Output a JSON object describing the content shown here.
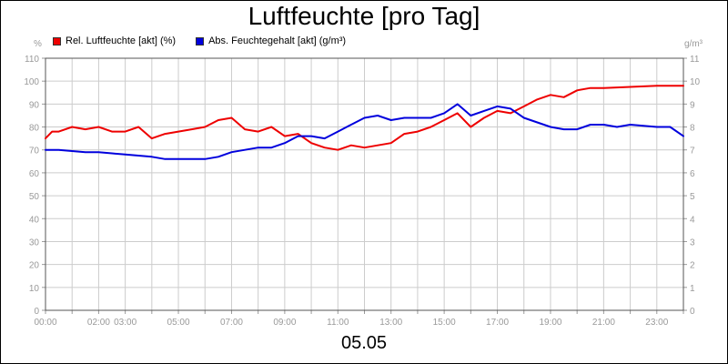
{
  "chart_data": {
    "type": "line",
    "title": "Luftfeuchte [pro Tag]",
    "xlabel": "05.05",
    "left_axis_unit": "%",
    "right_axis_unit": "g/m³",
    "ylim_left": [
      0,
      110
    ],
    "ylim_right": [
      0,
      11
    ],
    "grid": true,
    "legend_position": "top-left",
    "x_range_hours": [
      0,
      24
    ],
    "x_ticks": [
      "00:00",
      "02:00",
      "03:00",
      "05:00",
      "07:00",
      "09:00",
      "11:00",
      "13:00",
      "15:00",
      "17:00",
      "19:00",
      "21:00",
      "23:00"
    ],
    "y_ticks_left": [
      "0",
      "10",
      "20",
      "30",
      "40",
      "50",
      "60",
      "70",
      "80",
      "90",
      "100",
      "110"
    ],
    "y_ticks_right": [
      "0",
      "1",
      "2",
      "3",
      "4",
      "5",
      "6",
      "7",
      "8",
      "9",
      "10",
      "11"
    ],
    "series": [
      {
        "name": "Rel. Luftfeuchte [akt] (%)",
        "axis": "left",
        "color": "#ee0000",
        "x_hours": [
          0,
          0.25,
          0.5,
          1,
          1.5,
          2,
          2.5,
          3,
          3.5,
          4,
          4.5,
          5,
          5.5,
          6,
          6.5,
          7,
          7.5,
          8,
          8.5,
          9,
          9.5,
          10,
          10.5,
          11,
          11.5,
          12,
          12.5,
          13,
          13.5,
          14,
          14.5,
          15,
          15.5,
          16,
          16.5,
          17,
          17.5,
          18,
          18.5,
          19,
          19.5,
          20,
          20.5,
          21,
          22,
          23,
          23.5,
          24
        ],
        "values": [
          75,
          78,
          78,
          80,
          79,
          80,
          78,
          78,
          80,
          75,
          77,
          78,
          79,
          80,
          83,
          84,
          79,
          78,
          80,
          76,
          77,
          73,
          71,
          70,
          72,
          71,
          72,
          73,
          77,
          78,
          80,
          83,
          86,
          80,
          84,
          87,
          86,
          89,
          92,
          94,
          93,
          96,
          97,
          97,
          97.5,
          98,
          98,
          98
        ]
      },
      {
        "name": "Abs. Feuchtegehalt [akt] (g/m³)",
        "axis": "right",
        "color": "#0000dd",
        "x_hours": [
          0,
          0.5,
          1,
          1.5,
          2,
          2.5,
          3,
          3.5,
          4,
          4.5,
          5,
          5.5,
          6,
          6.5,
          7,
          7.5,
          8,
          8.5,
          9,
          9.5,
          10,
          10.5,
          11,
          11.5,
          12,
          12.5,
          13,
          13.5,
          14,
          14.5,
          15,
          15.5,
          16,
          16.5,
          17,
          17.5,
          18,
          18.5,
          19,
          19.5,
          20,
          20.5,
          21,
          21.5,
          22,
          22.5,
          23,
          23.5,
          24
        ],
        "values": [
          7.0,
          7.0,
          6.95,
          6.9,
          6.9,
          6.85,
          6.8,
          6.75,
          6.7,
          6.6,
          6.6,
          6.6,
          6.6,
          6.7,
          6.9,
          7.0,
          7.1,
          7.1,
          7.3,
          7.6,
          7.6,
          7.5,
          7.8,
          8.1,
          8.4,
          8.5,
          8.3,
          8.4,
          8.4,
          8.4,
          8.6,
          9.0,
          8.5,
          8.7,
          8.9,
          8.8,
          8.4,
          8.2,
          8.0,
          7.9,
          7.9,
          8.1,
          8.1,
          8.0,
          8.1,
          8.05,
          8.0,
          8.0,
          7.6
        ]
      }
    ]
  }
}
